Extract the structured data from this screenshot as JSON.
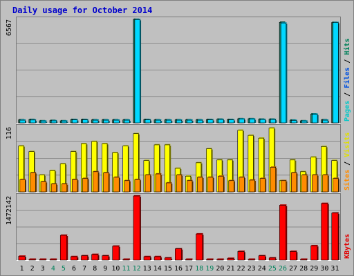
{
  "chart_data": {
    "type": "bar",
    "title": "Daily usage for October 2014",
    "categories": [
      "1",
      "2",
      "3",
      "4",
      "5",
      "6",
      "7",
      "8",
      "9",
      "10",
      "11",
      "12",
      "13",
      "14",
      "15",
      "16",
      "17",
      "18",
      "19",
      "20",
      "21",
      "22",
      "23",
      "24",
      "25",
      "26",
      "27",
      "28",
      "29",
      "30",
      "31"
    ],
    "weekend_days": [
      "4",
      "5",
      "11",
      "12",
      "18",
      "19",
      "25",
      "26"
    ],
    "panels": [
      {
        "ymax_label": "6567",
        "ymax": 6567,
        "legend": [
          {
            "text": "Pages",
            "color": "#00c8c8"
          },
          {
            "text": " / ",
            "color": "#000000"
          },
          {
            "text": "Files",
            "color": "#0050e0"
          },
          {
            "text": " / ",
            "color": "#000000"
          },
          {
            "text": "Hits",
            "color": "#00805a"
          }
        ],
        "series": [
          {
            "name": "Hits",
            "color": "#1a7a64",
            "values": [
              190,
              210,
              130,
              150,
              130,
              210,
              210,
              190,
              190,
              190,
              190,
              6567,
              210,
              190,
              190,
              190,
              190,
              190,
              210,
              230,
              210,
              260,
              260,
              230,
              230,
              6380,
              170,
              130,
              560,
              190,
              6370
            ]
          },
          {
            "name": "Files",
            "color": "#00d8ff",
            "values": [
              170,
              180,
              110,
              130,
              110,
              190,
              190,
              170,
              170,
              170,
              170,
              6550,
              190,
              170,
              170,
              170,
              170,
              170,
              190,
              210,
              190,
              240,
              240,
              210,
              210,
              6330,
              150,
              110,
              540,
              170,
              6360
            ]
          }
        ]
      },
      {
        "ymax_label": "116",
        "ymax": 116,
        "legend": [
          {
            "text": "Sites",
            "color": "#ff8c00"
          },
          {
            "text": " / ",
            "color": "#000000"
          },
          {
            "text": "Visits",
            "color": "#e0e000"
          }
        ],
        "series": [
          {
            "name": "Visits",
            "color": "#ffff00",
            "values": [
              82,
              72,
              30,
              38,
              50,
              72,
              86,
              90,
              86,
              70,
              82,
              104,
              56,
              84,
              84,
              42,
              28,
              52,
              77,
              57,
              57,
              110,
              101,
              96,
              114,
              20,
              57,
              36,
              62,
              81,
              56
            ]
          },
          {
            "name": "Sites",
            "color": "#ff8c00",
            "values": [
              22,
              34,
              18,
              14,
              14,
              22,
              24,
              36,
              34,
              26,
              20,
              22,
              30,
              32,
              16,
              30,
              20,
              26,
              26,
              28,
              20,
              26,
              21,
              24,
              44,
              20,
              34,
              30,
              30,
              30,
              24
            ]
          }
        ]
      },
      {
        "ymax_label": "1472142",
        "ymax": 1472142,
        "legend": [
          {
            "text": "KBytes",
            "color": "#e00000"
          }
        ],
        "series": [
          {
            "name": "KBytes",
            "color": "#ff0000",
            "values": [
              90000,
              20000,
              20000,
              20000,
              570000,
              80000,
              100000,
              130000,
              100000,
              320000,
              20000,
              1472142,
              80000,
              80000,
              50000,
              260000,
              20000,
              600000,
              20000,
              20000,
              40000,
              200000,
              20000,
              100000,
              50000,
              1260000,
              200000,
              20000,
              330000,
              1300000,
              1080000
            ]
          }
        ]
      }
    ]
  }
}
